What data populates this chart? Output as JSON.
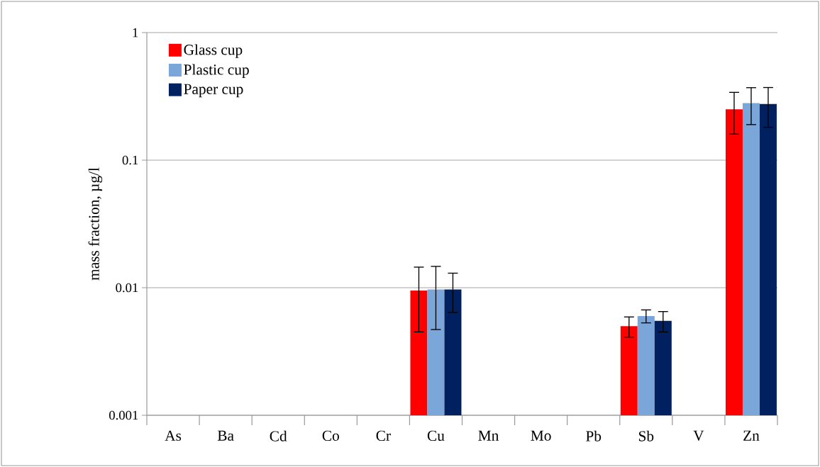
{
  "chart_data": {
    "type": "bar",
    "ylabel": "mass fraction, µg/l",
    "categories": [
      "As",
      "Ba",
      "Cd",
      "Co",
      "Cr",
      "Cu",
      "Mn",
      "Mo",
      "Pb",
      "Sb",
      "V",
      "Zn"
    ],
    "series": [
      {
        "name": "Glass cup",
        "color": "#ff0000",
        "values": [
          null,
          null,
          null,
          null,
          null,
          0.0095,
          null,
          null,
          null,
          0.005,
          null,
          0.25
        ],
        "errors": [
          null,
          null,
          null,
          null,
          null,
          0.005,
          null,
          null,
          null,
          0.0009,
          null,
          0.09
        ]
      },
      {
        "name": "Plastic cup",
        "color": "#7aa6da",
        "values": [
          null,
          null,
          null,
          null,
          null,
          0.0097,
          null,
          null,
          null,
          0.006,
          null,
          0.28
        ],
        "errors": [
          null,
          null,
          null,
          null,
          null,
          0.005,
          null,
          null,
          null,
          0.0007,
          null,
          0.09
        ]
      },
      {
        "name": "Paper cup",
        "color": "#002060",
        "values": [
          null,
          null,
          null,
          null,
          null,
          0.0097,
          null,
          null,
          null,
          0.0055,
          null,
          0.276
        ],
        "errors": [
          null,
          null,
          null,
          null,
          null,
          0.0033,
          null,
          null,
          null,
          0.001,
          null,
          0.095
        ]
      }
    ],
    "log": true,
    "ylim": [
      0.001,
      1
    ],
    "yticks": [
      0.001,
      0.01,
      0.1,
      1
    ],
    "grid": "y",
    "legend": "top left"
  }
}
